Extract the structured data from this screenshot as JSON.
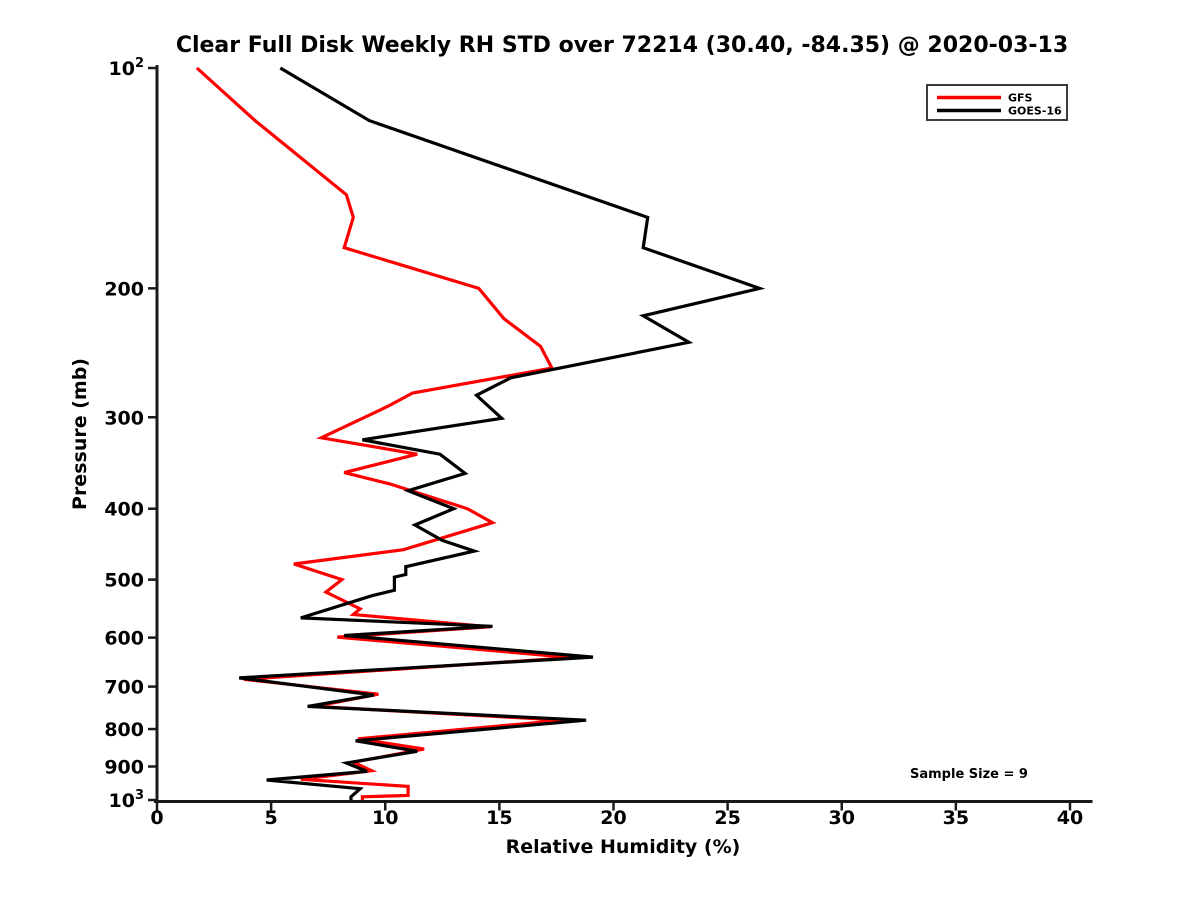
{
  "figure": {
    "title": "Clear Full Disk Weekly RH STD over 72214 (30.40, -84.35) @ 2020-03-13",
    "annotation": "Sample Size = 9"
  },
  "chart_data": {
    "type": "line",
    "title": "Clear Full Disk Weekly RH STD over 72214 (30.40, -84.35) @ 2020-03-13",
    "xlabel": "Relative Humidity (%)",
    "ylabel": "Pressure (mb)",
    "xlim": [
      0,
      40
    ],
    "x_ticks": [
      0,
      5,
      10,
      15,
      20,
      25,
      30,
      35,
      40
    ],
    "y_scale": "log",
    "y_axis_inverted": true,
    "ylim": [
      100,
      1000
    ],
    "y_ticks": [
      {
        "value": 100,
        "label": "10^2"
      },
      {
        "value": 200,
        "label": "200"
      },
      {
        "value": 300,
        "label": "300"
      },
      {
        "value": 400,
        "label": "400"
      },
      {
        "value": 500,
        "label": "500"
      },
      {
        "value": 600,
        "label": "600"
      },
      {
        "value": 700,
        "label": "700"
      },
      {
        "value": 800,
        "label": "800"
      },
      {
        "value": 900,
        "label": "900"
      },
      {
        "value": 1000,
        "label": "10^3"
      }
    ],
    "grid": false,
    "legend": {
      "position": "upper right",
      "entries": [
        {
          "name": "GFS",
          "color": "#ff0000"
        },
        {
          "name": "GOES-16",
          "color": "#000000"
        }
      ]
    },
    "annotation": {
      "text": "Sample Size = 9"
    },
    "series": [
      {
        "name": "GFS",
        "color": "#ff0000",
        "points_format": "[relative_humidity_percent, pressure_mb]",
        "points": [
          [
            1.75,
            100
          ],
          [
            4.3,
            118
          ],
          [
            8.3,
            149
          ],
          [
            8.6,
            160
          ],
          [
            8.2,
            176
          ],
          [
            14.1,
            200
          ],
          [
            15.2,
            220
          ],
          [
            16.8,
            240
          ],
          [
            17.3,
            257
          ],
          [
            11.2,
            278
          ],
          [
            10.1,
            290
          ],
          [
            7.2,
            320
          ],
          [
            11.4,
            337
          ],
          [
            8.2,
            357
          ],
          [
            10.2,
            370
          ],
          [
            13.6,
            400
          ],
          [
            14.7,
            418
          ],
          [
            10.8,
            455
          ],
          [
            6.0,
            476
          ],
          [
            8.1,
            500
          ],
          [
            7.4,
            520
          ],
          [
            8.9,
            548
          ],
          [
            8.6,
            558
          ],
          [
            14.6,
            580
          ],
          [
            7.9,
            599
          ],
          [
            18.2,
            639
          ],
          [
            3.8,
            684
          ],
          [
            9.7,
            717
          ],
          [
            6.9,
            745
          ],
          [
            17.8,
            778
          ],
          [
            8.8,
            825
          ],
          [
            11.7,
            852
          ],
          [
            8.6,
            888
          ],
          [
            9.4,
            912
          ],
          [
            6.3,
            937
          ],
          [
            11.0,
            958
          ],
          [
            11.0,
            986
          ],
          [
            9.0,
            990
          ],
          [
            9.0,
            1000
          ]
        ]
      },
      {
        "name": "GOES-16",
        "color": "#000000",
        "points_format": "[relative_humidity_percent, pressure_mb]",
        "points": [
          [
            5.4,
            100
          ],
          [
            9.3,
            118
          ],
          [
            21.5,
            160
          ],
          [
            21.3,
            176
          ],
          [
            26.4,
            200
          ],
          [
            21.3,
            218
          ],
          [
            23.3,
            237
          ],
          [
            15.5,
            265
          ],
          [
            14.0,
            280
          ],
          [
            15.1,
            301
          ],
          [
            9.0,
            322
          ],
          [
            12.4,
            337
          ],
          [
            13.5,
            358
          ],
          [
            11.0,
            378
          ],
          [
            13.0,
            400
          ],
          [
            11.3,
            421
          ],
          [
            12.5,
            442
          ],
          [
            13.9,
            457
          ],
          [
            10.9,
            480
          ],
          [
            10.9,
            492
          ],
          [
            10.4,
            496
          ],
          [
            10.4,
            517
          ],
          [
            9.4,
            526
          ],
          [
            6.3,
            564
          ],
          [
            14.7,
            579
          ],
          [
            8.2,
            596
          ],
          [
            19.1,
            638
          ],
          [
            3.6,
            681
          ],
          [
            9.5,
            719
          ],
          [
            6.6,
            745
          ],
          [
            18.8,
            778
          ],
          [
            8.7,
            830
          ],
          [
            11.4,
            858
          ],
          [
            8.3,
            890
          ],
          [
            9.2,
            914
          ],
          [
            4.8,
            939
          ],
          [
            8.9,
            965
          ],
          [
            8.5,
            990
          ],
          [
            8.5,
            1000
          ]
        ]
      }
    ]
  }
}
